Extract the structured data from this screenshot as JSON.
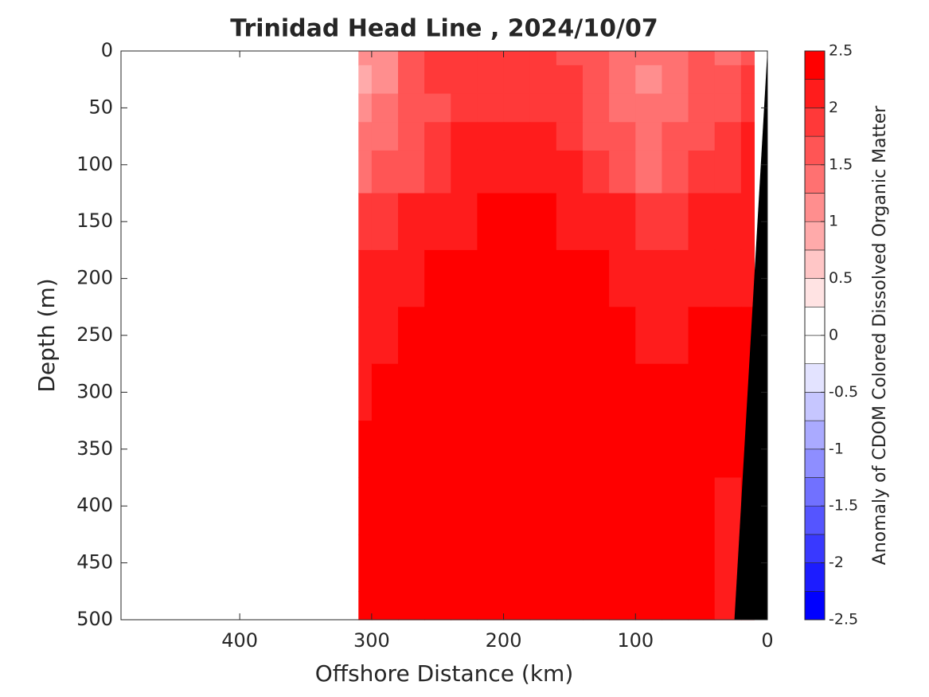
{
  "chart_data": {
    "type": "contour",
    "title": "Trinidad Head Line , 2024/10/07",
    "x_label": "Offshore Distance (km)",
    "y_label": "Depth (m)",
    "xlim": [
      490,
      0
    ],
    "xticks": [
      400,
      300,
      200,
      100,
      0
    ],
    "ylim": [
      0,
      500
    ],
    "yticks": [
      0,
      50,
      100,
      150,
      200,
      250,
      300,
      350,
      400,
      450,
      500
    ],
    "x": [
      310,
      290,
      270,
      250,
      230,
      210,
      190,
      170,
      150,
      130,
      110,
      90,
      70,
      50,
      30,
      10
    ],
    "y": [
      0,
      25,
      50,
      75,
      100,
      150,
      200,
      250,
      300,
      350,
      400,
      450,
      500
    ],
    "z": [
      [
        1.0,
        1.2,
        1.6,
        1.8,
        1.9,
        1.9,
        1.9,
        1.8,
        1.7,
        1.5,
        1.3,
        1.3,
        1.3,
        1.5,
        1.4,
        1.6
      ],
      [
        0.9,
        1.1,
        1.5,
        1.8,
        1.9,
        1.9,
        1.9,
        1.9,
        1.8,
        1.5,
        1.3,
        1.2,
        1.3,
        1.5,
        1.6,
        1.8
      ],
      [
        1.2,
        1.3,
        1.5,
        1.7,
        1.8,
        1.9,
        1.9,
        1.9,
        1.8,
        1.6,
        1.4,
        1.3,
        1.4,
        1.6,
        1.7,
        1.9
      ],
      [
        1.3,
        1.4,
        1.6,
        1.8,
        2.0,
        2.1,
        2.1,
        2.0,
        1.9,
        1.7,
        1.5,
        1.4,
        1.5,
        1.7,
        1.8,
        2.0
      ],
      [
        1.4,
        1.5,
        1.7,
        1.9,
        2.0,
        2.1,
        2.2,
        2.1,
        2.0,
        1.8,
        1.5,
        1.4,
        1.6,
        1.8,
        1.9,
        2.1
      ],
      [
        1.8,
        1.9,
        2.0,
        2.1,
        2.2,
        2.3,
        2.3,
        2.3,
        2.2,
        2.1,
        2.0,
        1.9,
        1.9,
        2.0,
        2.0,
        2.1
      ],
      [
        2.0,
        2.0,
        2.2,
        2.3,
        2.4,
        2.4,
        2.4,
        2.4,
        2.3,
        2.3,
        2.2,
        2.1,
        2.1,
        2.2,
        2.2,
        2.2
      ],
      [
        2.1,
        2.2,
        2.3,
        2.4,
        2.4,
        2.4,
        2.4,
        2.4,
        2.4,
        2.3,
        2.3,
        2.2,
        2.2,
        2.3,
        2.3,
        2.3
      ],
      [
        2.2,
        2.3,
        2.3,
        2.4,
        2.4,
        2.4,
        2.4,
        2.4,
        2.4,
        2.4,
        2.3,
        2.3,
        2.3,
        2.3,
        2.3,
        2.3
      ],
      [
        2.3,
        2.3,
        2.4,
        2.4,
        2.4,
        2.4,
        2.4,
        2.4,
        2.4,
        2.4,
        2.4,
        2.3,
        2.4,
        2.3,
        2.3,
        2.3
      ],
      [
        2.3,
        2.3,
        2.4,
        2.4,
        2.4,
        2.4,
        2.4,
        2.4,
        2.4,
        2.4,
        2.4,
        2.4,
        2.4,
        2.3,
        2.0,
        2.3
      ],
      [
        2.3,
        2.3,
        2.4,
        2.4,
        2.4,
        2.4,
        2.4,
        2.4,
        2.4,
        2.4,
        2.4,
        2.4,
        2.4,
        2.3,
        2.2,
        2.3
      ],
      [
        2.3,
        2.3,
        2.4,
        2.4,
        2.4,
        2.4,
        2.4,
        2.4,
        2.4,
        2.4,
        2.4,
        2.4,
        2.4,
        2.3,
        2.2,
        2.3
      ]
    ],
    "bathymetry": {
      "x": [
        0,
        25
      ],
      "y": [
        0,
        500
      ],
      "color": "#000000"
    },
    "colorbar": {
      "label": "Anomaly of CDOM Colored Dissolved Organic Matter",
      "levels": [
        -2.5,
        -2.25,
        -2,
        -1.75,
        -1.5,
        -1.25,
        -1,
        -0.75,
        -0.5,
        -0.25,
        0,
        0.25,
        0.5,
        0.75,
        1,
        1.25,
        1.5,
        1.75,
        2,
        2.25,
        2.5
      ],
      "colors": [
        "#0000ff",
        "#1c1cff",
        "#3939ff",
        "#5555ff",
        "#7171ff",
        "#8e8eff",
        "#aaaaff",
        "#c6c6ff",
        "#e3e3ff",
        "#ffffff",
        "#ffffff",
        "#ffe3e3",
        "#ffc6c6",
        "#ffaaaa",
        "#ff8e8e",
        "#ff7171",
        "#ff5555",
        "#ff3939",
        "#ff1c1c",
        "#ff0000"
      ],
      "ticks": [
        -2.5,
        -2,
        -1.5,
        -1,
        -0.5,
        0,
        0.5,
        1,
        1.5,
        2,
        2.5
      ]
    }
  }
}
